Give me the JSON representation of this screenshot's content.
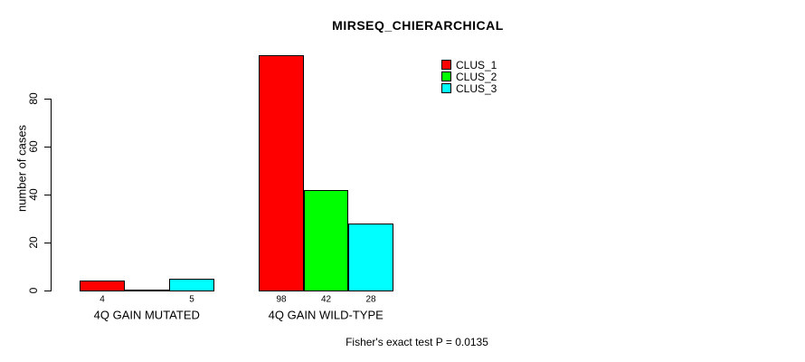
{
  "chart_data": {
    "type": "bar",
    "title": "MIRSEQ_CHIERARCHICAL",
    "ylabel": "number of cases",
    "xlabel": "",
    "categories": [
      "4Q GAIN MUTATED",
      "4Q GAIN WILD-TYPE"
    ],
    "series": [
      {
        "name": "CLUS_1",
        "color": "#FF0000",
        "values": [
          4,
          98
        ]
      },
      {
        "name": "CLUS_2",
        "color": "#00FF00",
        "values": [
          0,
          42
        ]
      },
      {
        "name": "CLUS_3",
        "color": "#00FFFF",
        "values": [
          5,
          28
        ]
      }
    ],
    "value_labels": {
      "show": true,
      "hide_zero": true
    },
    "yticks": [
      0,
      20,
      40,
      60,
      80
    ],
    "ylim": [
      0,
      100
    ],
    "grid": false,
    "legend_position": "top-right",
    "bar_border_color": "#000000",
    "annotation": "Fisher's exact test P = 0.0135"
  }
}
